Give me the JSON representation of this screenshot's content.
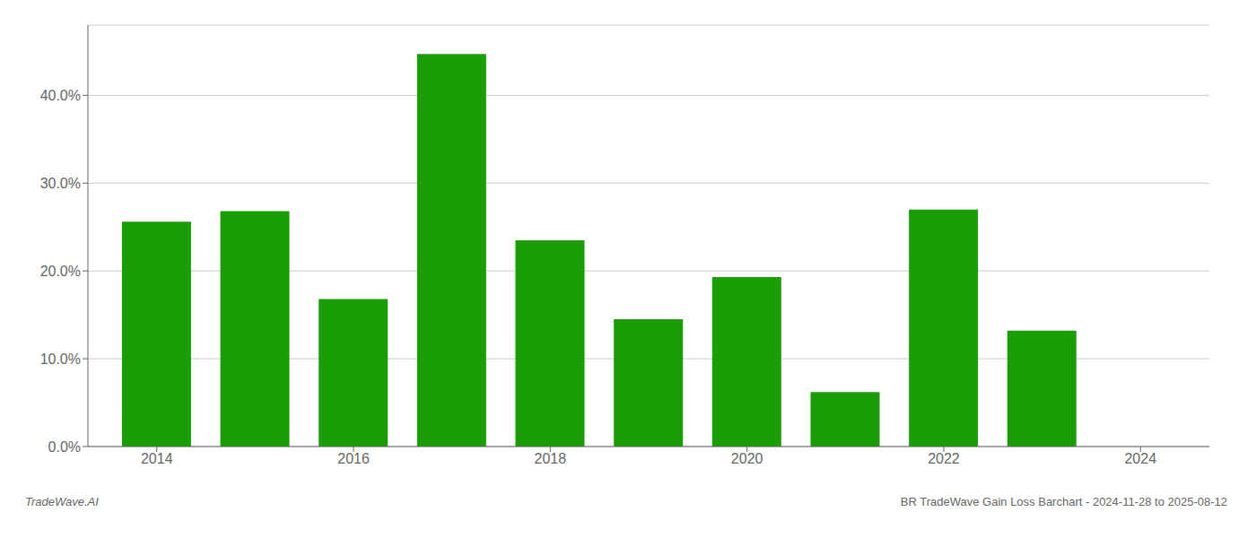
{
  "chart_data": {
    "type": "bar",
    "x": [
      2014,
      2015,
      2016,
      2017,
      2018,
      2019,
      2020,
      2021,
      2022,
      2023
    ],
    "values": [
      0.256,
      0.268,
      0.168,
      0.447,
      0.235,
      0.145,
      0.193,
      0.062,
      0.27,
      0.132
    ],
    "color": "#1a9e06",
    "xlim": [
      2013.3,
      2024.7
    ],
    "xticks": [
      2014,
      2016,
      2018,
      2020,
      2022,
      2024
    ],
    "ylim": [
      0,
      0.48
    ],
    "yticks": [
      {
        "value": 0.0,
        "label": "0.0%"
      },
      {
        "value": 0.1,
        "label": "10.0%"
      },
      {
        "value": 0.2,
        "label": "20.0%"
      },
      {
        "value": 0.3,
        "label": "30.0%"
      },
      {
        "value": 0.4,
        "label": "40.0%"
      }
    ],
    "grid": true,
    "annotations": [
      "TradeWave.AI",
      "BR TradeWave Gain Loss Barchart - 2024-11-28 to 2025-08-12"
    ]
  }
}
